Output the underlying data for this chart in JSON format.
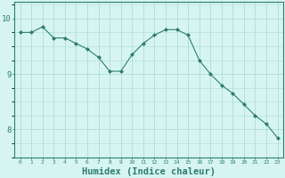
{
  "x": [
    0,
    1,
    2,
    3,
    4,
    5,
    6,
    7,
    8,
    9,
    10,
    11,
    12,
    13,
    14,
    15,
    16,
    17,
    18,
    19,
    20,
    21,
    22,
    23
  ],
  "y": [
    9.75,
    9.75,
    9.85,
    9.65,
    9.65,
    9.55,
    9.45,
    9.3,
    9.05,
    9.05,
    9.35,
    9.55,
    9.7,
    9.8,
    9.8,
    9.7,
    9.25,
    9.0,
    8.8,
    8.65,
    8.45,
    8.25,
    8.1,
    7.85
  ],
  "line_color": "#2e7d6e",
  "marker": "D",
  "marker_size": 2.0,
  "bg_color": "#d6f5f2",
  "grid_color": "#b0dbd6",
  "tick_color": "#2e7d6e",
  "xlabel": "Humidex (Indice chaleur)",
  "xlabel_fontsize": 7.5,
  "yticks": [
    8,
    9,
    10
  ],
  "ylim": [
    7.5,
    10.3
  ],
  "xlim": [
    -0.5,
    23.5
  ],
  "xticklabels": [
    "0",
    "1",
    "2",
    "3",
    "4",
    "5",
    "6",
    "7",
    "8",
    "9",
    "10",
    "11",
    "12",
    "13",
    "14",
    "15",
    "16",
    "17",
    "18",
    "19",
    "20",
    "21",
    "22",
    "23"
  ]
}
